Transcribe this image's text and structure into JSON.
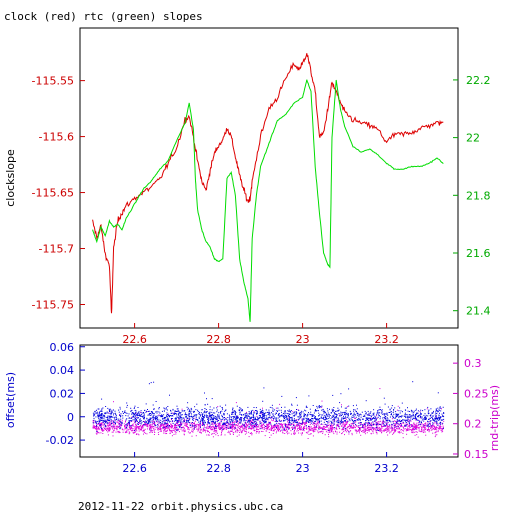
{
  "title": "clock (red) rtc (green) slopes",
  "footer": "2012-11-22 orbit.physics.ubc.ca",
  "colors": {
    "red": "#dd0000",
    "green": "#00dd00",
    "blue": "#0000dd",
    "magenta": "#dd00dd",
    "frame": "#000000"
  },
  "chart_data": [
    {
      "type": "line",
      "title": "clock (red) rtc (green) slopes",
      "ylabel": "clockslope",
      "xlim": [
        22.47,
        23.37
      ],
      "ylim": [
        -115.771,
        -115.503
      ],
      "y2lim": [
        21.34,
        22.38
      ],
      "x_ticks": [
        "22.6",
        "22.8",
        "23",
        "23.2"
      ],
      "x_tick_values": [
        22.6,
        22.8,
        23.0,
        23.2
      ],
      "y_ticks": [
        "-115.55",
        "-115.6",
        "-115.65",
        "-115.7",
        "-115.75"
      ],
      "y_tick_values": [
        -115.55,
        -115.6,
        -115.65,
        -115.7,
        -115.75
      ],
      "y2_ticks": [
        "22.2",
        "22",
        "21.8",
        "21.6",
        "21.4"
      ],
      "y2_tick_values": [
        22.2,
        22.0,
        21.8,
        21.6,
        21.4
      ],
      "series": [
        {
          "name": "clock (red)",
          "axis": "left",
          "color": "#dd0000",
          "x": [
            22.5,
            22.51,
            22.52,
            22.53,
            22.54,
            22.545,
            22.55,
            22.56,
            22.57,
            22.58,
            22.6,
            22.62,
            22.64,
            22.66,
            22.68,
            22.7,
            22.72,
            22.73,
            22.74,
            22.75,
            22.76,
            22.77,
            22.78,
            22.79,
            22.8,
            22.81,
            22.82,
            22.83,
            22.84,
            22.85,
            22.86,
            22.87,
            22.875,
            22.88,
            22.89,
            22.9,
            22.92,
            22.94,
            22.96,
            22.98,
            22.99,
            23.0,
            23.01,
            23.02,
            23.03,
            23.04,
            23.05,
            23.06,
            23.07,
            23.08,
            23.09,
            23.1,
            23.12,
            23.14,
            23.16,
            23.18,
            23.2,
            23.22,
            23.24,
            23.26,
            23.28,
            23.3,
            23.32,
            23.335
          ],
          "y": [
            -115.676,
            -115.69,
            -115.68,
            -115.705,
            -115.715,
            -115.76,
            -115.7,
            -115.675,
            -115.668,
            -115.662,
            -115.655,
            -115.65,
            -115.645,
            -115.638,
            -115.624,
            -115.61,
            -115.585,
            -115.582,
            -115.6,
            -115.622,
            -115.64,
            -115.648,
            -115.63,
            -115.615,
            -115.608,
            -115.603,
            -115.592,
            -115.6,
            -115.618,
            -115.635,
            -115.648,
            -115.658,
            -115.655,
            -115.64,
            -115.62,
            -115.6,
            -115.575,
            -115.565,
            -115.548,
            -115.535,
            -115.54,
            -115.535,
            -115.525,
            -115.542,
            -115.56,
            -115.6,
            -115.597,
            -115.575,
            -115.552,
            -115.56,
            -115.57,
            -115.578,
            -115.585,
            -115.588,
            -115.59,
            -115.594,
            -115.605,
            -115.598,
            -115.598,
            -115.596,
            -115.593,
            -115.59,
            -115.588,
            -115.587
          ]
        },
        {
          "name": "rtc (green)",
          "axis": "right",
          "color": "#00dd00",
          "x": [
            22.5,
            22.51,
            22.52,
            22.53,
            22.54,
            22.55,
            22.56,
            22.57,
            22.58,
            22.6,
            22.62,
            22.64,
            22.66,
            22.68,
            22.7,
            22.72,
            22.73,
            22.74,
            22.745,
            22.75,
            22.76,
            22.77,
            22.78,
            22.79,
            22.8,
            22.81,
            22.82,
            22.83,
            22.84,
            22.85,
            22.86,
            22.87,
            22.875,
            22.88,
            22.89,
            22.9,
            22.92,
            22.94,
            22.96,
            22.98,
            23.0,
            23.01,
            23.02,
            23.03,
            23.04,
            23.05,
            23.06,
            23.065,
            23.07,
            23.08,
            23.09,
            23.1,
            23.12,
            23.14,
            23.16,
            23.18,
            23.2,
            23.22,
            23.24,
            23.26,
            23.28,
            23.3,
            23.32,
            23.335
          ],
          "y": [
            21.68,
            21.64,
            21.69,
            21.66,
            21.71,
            21.69,
            21.7,
            21.68,
            21.72,
            21.77,
            21.82,
            21.85,
            21.89,
            21.92,
            21.99,
            22.05,
            22.12,
            22.03,
            21.85,
            21.75,
            21.68,
            21.64,
            21.62,
            21.58,
            21.57,
            21.58,
            21.86,
            21.88,
            21.8,
            21.58,
            21.5,
            21.44,
            21.36,
            21.65,
            21.8,
            21.9,
            21.98,
            22.06,
            22.08,
            22.12,
            22.14,
            22.2,
            22.16,
            21.9,
            21.74,
            21.6,
            21.56,
            21.55,
            22.0,
            22.2,
            22.1,
            22.04,
            21.97,
            21.95,
            21.96,
            21.94,
            21.91,
            21.89,
            21.89,
            21.9,
            21.9,
            21.91,
            21.93,
            21.91
          ]
        }
      ]
    },
    {
      "type": "scatter",
      "ylabel": "offset(ms)",
      "y2label": "rnd-trip(ms)",
      "xlim": [
        22.47,
        23.37
      ],
      "ylim": [
        -0.0345,
        0.0615
      ],
      "y2lim": [
        0.145,
        0.33
      ],
      "x_ticks": [
        "22.6",
        "22.8",
        "23",
        "23.2"
      ],
      "x_tick_values": [
        22.6,
        22.8,
        23.0,
        23.2
      ],
      "y_ticks": [
        "0.06",
        "0.04",
        "0.02",
        "0",
        "-0.02"
      ],
      "y_tick_values": [
        0.06,
        0.04,
        0.02,
        0.0,
        -0.02
      ],
      "y2_ticks": [
        "0.3",
        "0.25",
        "0.2",
        "0.15"
      ],
      "y2_tick_values": [
        0.3,
        0.25,
        0.2,
        0.15
      ],
      "series": [
        {
          "name": "offset",
          "axis": "left",
          "color": "#0000dd",
          "x_range": [
            22.5,
            23.335
          ],
          "center": 0.0,
          "spread": 0.013,
          "count": 2200
        },
        {
          "name": "rnd-trip",
          "axis": "right",
          "color": "#dd00dd",
          "x_range": [
            22.5,
            23.335
          ],
          "center": 0.195,
          "spread": 0.018,
          "count": 2200
        }
      ]
    }
  ]
}
